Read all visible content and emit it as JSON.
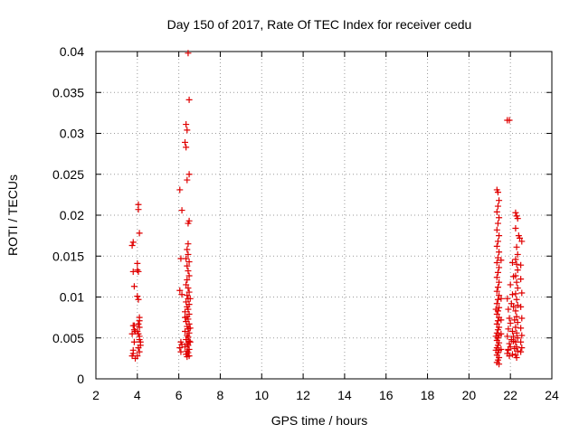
{
  "chart_data": {
    "type": "scatter",
    "title": "Day 150 of 2017, Rate Of TEC Index for receiver cedu",
    "xlabel": "GPS time / hours",
    "ylabel": "ROTI / TECUs",
    "xlim": [
      2,
      24
    ],
    "ylim": [
      0,
      0.04
    ],
    "xticks": [
      2,
      4,
      6,
      8,
      10,
      12,
      14,
      16,
      18,
      20,
      22,
      24
    ],
    "xtick_labels": [
      "2",
      "4",
      "6",
      "8",
      "10",
      "12",
      "14",
      "16",
      "18",
      "20",
      "22",
      "24"
    ],
    "yticks": [
      0,
      0.005,
      0.01,
      0.015,
      0.02,
      0.025,
      0.03,
      0.035,
      0.04
    ],
    "ytick_labels": [
      "0",
      "0.005",
      "0.01",
      "0.015",
      "0.02",
      "0.025",
      "0.03",
      "0.035",
      "0.04"
    ],
    "grid": true,
    "marker": "+",
    "color": "#e00000",
    "series": [
      {
        "name": "ROTI",
        "points": [
          [
            3.75,
            0.0163
          ],
          [
            3.8,
            0.0167
          ],
          [
            3.8,
            0.0131
          ],
          [
            3.85,
            0.0113
          ],
          [
            3.8,
            0.0065
          ],
          [
            3.85,
            0.006
          ],
          [
            3.75,
            0.0055
          ],
          [
            3.85,
            0.0045
          ],
          [
            3.8,
            0.0035
          ],
          [
            3.75,
            0.0028
          ],
          [
            3.9,
            0.0025
          ],
          [
            3.8,
            0.0031
          ],
          [
            3.85,
            0.0065
          ],
          [
            3.9,
            0.0058
          ],
          [
            4.05,
            0.0213
          ],
          [
            4.05,
            0.0207
          ],
          [
            4.1,
            0.0178
          ],
          [
            4.0,
            0.0141
          ],
          [
            4.0,
            0.0133
          ],
          [
            4.05,
            0.0131
          ],
          [
            4.0,
            0.0101
          ],
          [
            4.05,
            0.0097
          ],
          [
            4.1,
            0.0075
          ],
          [
            4.1,
            0.0071
          ],
          [
            4.05,
            0.0067
          ],
          [
            4.1,
            0.0063
          ],
          [
            4.0,
            0.0058
          ],
          [
            4.05,
            0.0055
          ],
          [
            4.1,
            0.0048
          ],
          [
            4.15,
            0.0045
          ],
          [
            4.05,
            0.0038
          ],
          [
            4.1,
            0.0033
          ],
          [
            4.0,
            0.0028
          ],
          [
            4.15,
            0.0041
          ],
          [
            4.1,
            0.0052
          ],
          [
            6.05,
            0.0231
          ],
          [
            6.15,
            0.0206
          ],
          [
            6.1,
            0.0147
          ],
          [
            6.05,
            0.0108
          ],
          [
            6.15,
            0.0103
          ],
          [
            6.1,
            0.0045
          ],
          [
            6.05,
            0.0038
          ],
          [
            6.15,
            0.0042
          ],
          [
            6.1,
            0.0033
          ],
          [
            6.45,
            0.0398
          ],
          [
            6.5,
            0.0341
          ],
          [
            6.35,
            0.0311
          ],
          [
            6.4,
            0.0304
          ],
          [
            6.3,
            0.0289
          ],
          [
            6.35,
            0.0283
          ],
          [
            6.5,
            0.025
          ],
          [
            6.4,
            0.0243
          ],
          [
            6.5,
            0.0193
          ],
          [
            6.45,
            0.019
          ],
          [
            6.45,
            0.0165
          ],
          [
            6.4,
            0.0158
          ],
          [
            6.45,
            0.0152
          ],
          [
            6.35,
            0.0147
          ],
          [
            6.5,
            0.0143
          ],
          [
            6.4,
            0.0138
          ],
          [
            6.45,
            0.0132
          ],
          [
            6.5,
            0.0126
          ],
          [
            6.4,
            0.0121
          ],
          [
            6.35,
            0.0115
          ],
          [
            6.45,
            0.0111
          ],
          [
            6.5,
            0.0106
          ],
          [
            6.4,
            0.0102
          ],
          [
            6.45,
            0.0098
          ],
          [
            6.35,
            0.0094
          ],
          [
            6.5,
            0.0091
          ],
          [
            6.4,
            0.0088
          ],
          [
            6.45,
            0.0085
          ],
          [
            6.3,
            0.0082
          ],
          [
            6.5,
            0.0079
          ],
          [
            6.4,
            0.0076
          ],
          [
            6.45,
            0.0073
          ],
          [
            6.35,
            0.007
          ],
          [
            6.5,
            0.0067
          ],
          [
            6.4,
            0.0064
          ],
          [
            6.45,
            0.0061
          ],
          [
            6.3,
            0.0058
          ],
          [
            6.5,
            0.0056
          ],
          [
            6.4,
            0.0053
          ],
          [
            6.45,
            0.0051
          ],
          [
            6.35,
            0.0048
          ],
          [
            6.5,
            0.0046
          ],
          [
            6.4,
            0.0043
          ],
          [
            6.45,
            0.0041
          ],
          [
            6.3,
            0.0039
          ],
          [
            6.5,
            0.0036
          ],
          [
            6.4,
            0.0034
          ],
          [
            6.45,
            0.0032
          ],
          [
            6.35,
            0.003
          ],
          [
            6.5,
            0.0028
          ],
          [
            6.4,
            0.0027
          ],
          [
            6.55,
            0.0062
          ],
          [
            6.55,
            0.0045
          ],
          [
            6.55,
            0.0098
          ],
          [
            6.3,
            0.0075
          ],
          [
            21.35,
            0.0231
          ],
          [
            21.4,
            0.0228
          ],
          [
            21.45,
            0.0218
          ],
          [
            21.4,
            0.0211
          ],
          [
            21.35,
            0.0204
          ],
          [
            21.45,
            0.0197
          ],
          [
            21.4,
            0.019
          ],
          [
            21.35,
            0.0182
          ],
          [
            21.45,
            0.0175
          ],
          [
            21.4,
            0.0168
          ],
          [
            21.35,
            0.0162
          ],
          [
            21.45,
            0.0155
          ],
          [
            21.4,
            0.0148
          ],
          [
            21.35,
            0.0142
          ],
          [
            21.45,
            0.0136
          ],
          [
            21.4,
            0.013
          ],
          [
            21.35,
            0.0124
          ],
          [
            21.45,
            0.0118
          ],
          [
            21.4,
            0.0112
          ],
          [
            21.35,
            0.0107
          ],
          [
            21.45,
            0.0102
          ],
          [
            21.4,
            0.0097
          ],
          [
            21.35,
            0.0092
          ],
          [
            21.45,
            0.0087
          ],
          [
            21.4,
            0.0083
          ],
          [
            21.35,
            0.0079
          ],
          [
            21.45,
            0.0075
          ],
          [
            21.4,
            0.0071
          ],
          [
            21.35,
            0.0067
          ],
          [
            21.45,
            0.0063
          ],
          [
            21.4,
            0.006
          ],
          [
            21.35,
            0.0056
          ],
          [
            21.45,
            0.0053
          ],
          [
            21.4,
            0.005
          ],
          [
            21.35,
            0.0047
          ],
          [
            21.45,
            0.0044
          ],
          [
            21.4,
            0.0041
          ],
          [
            21.35,
            0.0038
          ],
          [
            21.45,
            0.0035
          ],
          [
            21.4,
            0.0032
          ],
          [
            21.35,
            0.0029
          ],
          [
            21.45,
            0.0026
          ],
          [
            21.4,
            0.0023
          ],
          [
            21.35,
            0.002
          ],
          [
            21.45,
            0.0018
          ],
          [
            21.55,
            0.0145
          ],
          [
            21.55,
            0.0098
          ],
          [
            21.55,
            0.0072
          ],
          [
            21.55,
            0.0055
          ],
          [
            21.55,
            0.0036
          ],
          [
            21.3,
            0.0085
          ],
          [
            21.3,
            0.0052
          ],
          [
            21.3,
            0.0035
          ],
          [
            21.95,
            0.0316
          ],
          [
            21.85,
            0.0316
          ],
          [
            21.85,
            0.0098
          ],
          [
            21.9,
            0.0085
          ],
          [
            21.95,
            0.0074
          ],
          [
            21.9,
            0.0061
          ],
          [
            21.85,
            0.0052
          ],
          [
            21.95,
            0.0043
          ],
          [
            21.9,
            0.0036
          ],
          [
            21.85,
            0.0031
          ],
          [
            21.95,
            0.0028
          ],
          [
            21.9,
            0.0035
          ],
          [
            22.0,
            0.0115
          ],
          [
            22.05,
            0.0092
          ],
          [
            22.0,
            0.0068
          ],
          [
            22.05,
            0.0048
          ],
          [
            22.0,
            0.0039
          ],
          [
            22.1,
            0.0142
          ],
          [
            22.15,
            0.0125
          ],
          [
            22.1,
            0.0103
          ],
          [
            22.15,
            0.0088
          ],
          [
            22.2,
            0.0072
          ],
          [
            22.1,
            0.0058
          ],
          [
            22.15,
            0.0046
          ],
          [
            22.2,
            0.0037
          ],
          [
            22.1,
            0.003
          ],
          [
            22.15,
            0.0052
          ],
          [
            22.25,
            0.0203
          ],
          [
            22.3,
            0.0199
          ],
          [
            22.35,
            0.0196
          ],
          [
            22.25,
            0.0184
          ],
          [
            22.3,
            0.0161
          ],
          [
            22.35,
            0.0152
          ],
          [
            22.25,
            0.0146
          ],
          [
            22.3,
            0.014
          ],
          [
            22.35,
            0.0133
          ],
          [
            22.25,
            0.0126
          ],
          [
            22.3,
            0.0118
          ],
          [
            22.35,
            0.0111
          ],
          [
            22.25,
            0.0104
          ],
          [
            22.3,
            0.0097
          ],
          [
            22.35,
            0.009
          ],
          [
            22.25,
            0.0083
          ],
          [
            22.3,
            0.0076
          ],
          [
            22.35,
            0.0069
          ],
          [
            22.25,
            0.0063
          ],
          [
            22.3,
            0.0056
          ],
          [
            22.35,
            0.005
          ],
          [
            22.25,
            0.0045
          ],
          [
            22.3,
            0.0039
          ],
          [
            22.35,
            0.0034
          ],
          [
            22.25,
            0.0029
          ],
          [
            22.3,
            0.0026
          ],
          [
            22.4,
            0.0175
          ],
          [
            22.45,
            0.0172
          ],
          [
            22.55,
            0.0168
          ],
          [
            22.5,
            0.0139
          ],
          [
            22.5,
            0.0122
          ],
          [
            22.55,
            0.0105
          ],
          [
            22.5,
            0.0088
          ],
          [
            22.55,
            0.0074
          ],
          [
            22.5,
            0.0062
          ],
          [
            22.55,
            0.0053
          ],
          [
            22.5,
            0.0045
          ],
          [
            22.55,
            0.0038
          ],
          [
            22.5,
            0.0033
          ]
        ]
      }
    ]
  }
}
